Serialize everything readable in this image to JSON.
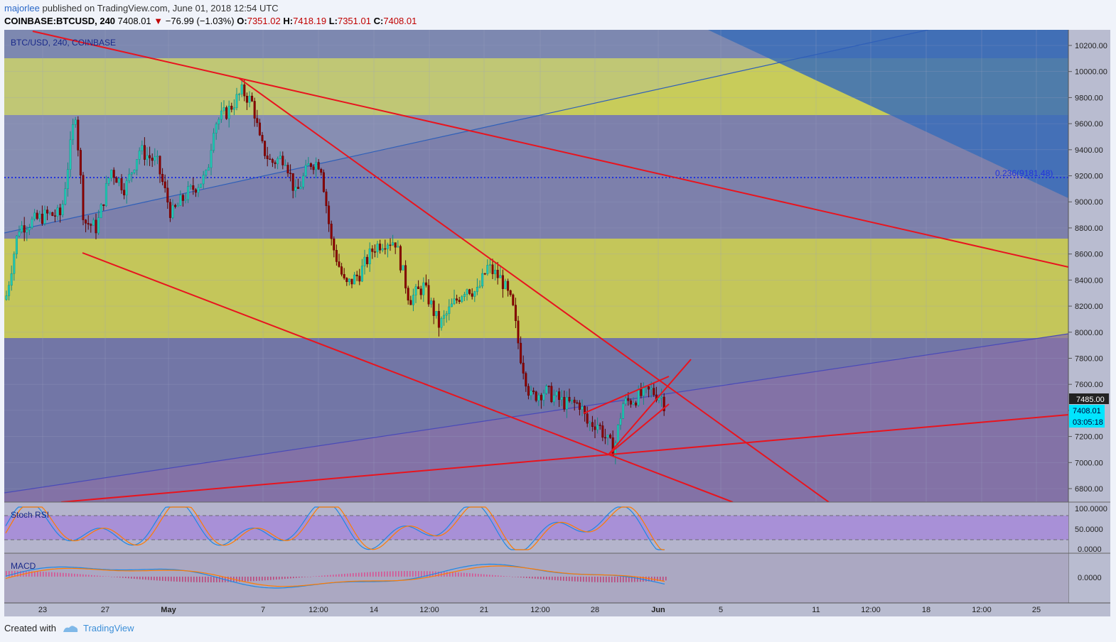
{
  "header": {
    "user": "majorlee",
    "published": "published on TradingView.com, June 01, 2018 12:54 UTC"
  },
  "ohlc": {
    "symbol": "COINBASE:BTCUSD, 240",
    "last": "7408.01",
    "arrow": "▼",
    "change": "−76.99 (−1.03%)",
    "o_label": "O:",
    "o": "7351.02",
    "h_label": "H:",
    "h": "7418.19",
    "l_label": "L:",
    "l": "7351.01",
    "c_label": "C:",
    "c": "7408.01"
  },
  "chart": {
    "legend": "BTC/USD, 240, COINBASE",
    "fib_label": "0.236(9181.48)",
    "price_axis": [
      "10200.00",
      "10000.00",
      "9800.00",
      "9600.00",
      "9400.00",
      "9200.00",
      "9000.00",
      "8800.00",
      "8600.00",
      "8400.00",
      "8200.00",
      "8000.00",
      "7800.00",
      "7600.00",
      "7400.00",
      "7200.00",
      "7000.00",
      "6800.00"
    ],
    "price_axis_values": [
      10200,
      10000,
      9800,
      9600,
      9400,
      9200,
      9000,
      8800,
      8600,
      8400,
      8200,
      8000,
      7800,
      7600,
      7400,
      7200,
      7000,
      6800
    ],
    "marker_high": "7485.00",
    "marker_last": "7408.01",
    "marker_timer": "03:05:18",
    "time_axis": [
      "23",
      "27",
      "May",
      "7",
      "12:00",
      "14",
      "12:00",
      "21",
      "12:00",
      "28",
      "Jun",
      "5",
      "11",
      "12:00",
      "18",
      "12:00",
      "25"
    ],
    "colors": {
      "yellow_band": "#c8cc5a",
      "grey_band": "#8b8fb0",
      "blue_triangle": "#3a6db8",
      "trend_red": "#e8141e",
      "candle_up": "#1fc8b4",
      "candle_down": "#8b0000",
      "fib_dots": "#2233dd",
      "marker_cyan": "#00e5ff"
    }
  },
  "stoch": {
    "title": "Stoch RSI",
    "axis": [
      "100.0000",
      "50.0000",
      "0.0000"
    ]
  },
  "macd": {
    "title": "MACD",
    "axis": [
      "0.0000"
    ]
  },
  "footer": {
    "created": "Created with",
    "brand": "TradingView"
  }
}
